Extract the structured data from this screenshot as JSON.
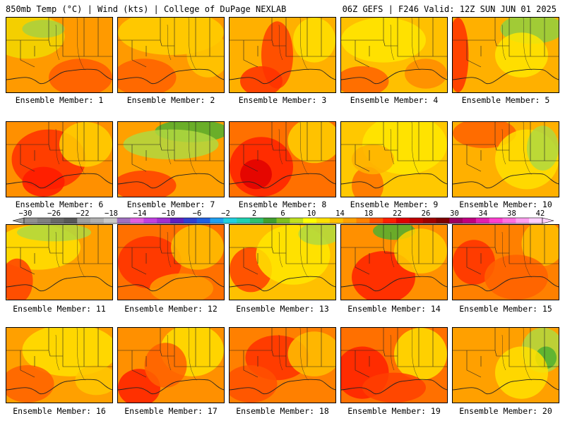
{
  "header": {
    "left": "850mb Temp (°C) | Wind (kts) | College of DuPage NEXLAB",
    "right": "06Z GEFS | F246 Valid: 12Z SUN JUN 01 2025"
  },
  "panel_label_prefix": "Ensemble Member: ",
  "members": [
    {
      "n": "1",
      "base": "#ff9a00",
      "blobs": [
        [
          "#f2d800",
          0.2,
          0.25,
          0.35,
          0.3
        ],
        [
          "#a8d040",
          0.35,
          0.15,
          0.2,
          0.12
        ],
        [
          "#ff5a00",
          0.7,
          0.8,
          0.3,
          0.25
        ]
      ]
    },
    {
      "n": "2",
      "base": "#ff9a00",
      "blobs": [
        [
          "#ffd000",
          0.5,
          0.2,
          0.5,
          0.3
        ],
        [
          "#ff6000",
          0.25,
          0.8,
          0.3,
          0.25
        ],
        [
          "#ffc800",
          0.85,
          0.5,
          0.2,
          0.3
        ]
      ]
    },
    {
      "n": "3",
      "base": "#ffb000",
      "blobs": [
        [
          "#ff4000",
          0.45,
          0.5,
          0.15,
          0.45
        ],
        [
          "#ff3000",
          0.3,
          0.85,
          0.2,
          0.2
        ],
        [
          "#ffe000",
          0.8,
          0.3,
          0.2,
          0.3
        ]
      ]
    },
    {
      "n": "4",
      "base": "#ffc000",
      "blobs": [
        [
          "#ffe600",
          0.4,
          0.3,
          0.4,
          0.3
        ],
        [
          "#ff6000",
          0.2,
          0.85,
          0.25,
          0.2
        ],
        [
          "#ff8a00",
          0.8,
          0.75,
          0.2,
          0.2
        ]
      ]
    },
    {
      "n": "5",
      "base": "#ffb000",
      "blobs": [
        [
          "#ff3000",
          0.05,
          0.5,
          0.1,
          0.5
        ],
        [
          "#90d040",
          0.75,
          0.15,
          0.3,
          0.2
        ],
        [
          "#ffe600",
          0.65,
          0.5,
          0.25,
          0.3
        ]
      ]
    },
    {
      "n": "6",
      "base": "#ff9000",
      "blobs": [
        [
          "#ff3000",
          0.4,
          0.5,
          0.35,
          0.4
        ],
        [
          "#ffd000",
          0.75,
          0.3,
          0.25,
          0.3
        ],
        [
          "#ff1a00",
          0.35,
          0.8,
          0.2,
          0.2
        ]
      ]
    },
    {
      "n": "7",
      "base": "#ffa000",
      "blobs": [
        [
          "#50b030",
          0.7,
          0.12,
          0.35,
          0.15
        ],
        [
          "#b0d840",
          0.5,
          0.3,
          0.45,
          0.2
        ],
        [
          "#ff4000",
          0.25,
          0.85,
          0.3,
          0.2
        ]
      ]
    },
    {
      "n": "8",
      "base": "#ff7000",
      "blobs": [
        [
          "#ff2000",
          0.3,
          0.6,
          0.3,
          0.4
        ],
        [
          "#ffd000",
          0.8,
          0.25,
          0.25,
          0.3
        ],
        [
          "#e00000",
          0.25,
          0.7,
          0.15,
          0.2
        ]
      ]
    },
    {
      "n": "9",
      "base": "#ffc800",
      "blobs": [
        [
          "#ffe800",
          0.6,
          0.3,
          0.4,
          0.4
        ],
        [
          "#ff7000",
          0.25,
          0.85,
          0.15,
          0.25
        ],
        [
          "#ffb000",
          0.3,
          0.5,
          0.2,
          0.2
        ]
      ]
    },
    {
      "n": "10",
      "base": "#ffb000",
      "blobs": [
        [
          "#ff6000",
          0.3,
          0.15,
          0.3,
          0.2
        ],
        [
          "#ffe000",
          0.7,
          0.5,
          0.3,
          0.4
        ],
        [
          "#b0d840",
          0.85,
          0.35,
          0.15,
          0.3
        ]
      ]
    },
    {
      "n": "11",
      "base": "#ffa000",
      "blobs": [
        [
          "#ffe000",
          0.3,
          0.3,
          0.4,
          0.3
        ],
        [
          "#b0d840",
          0.45,
          0.1,
          0.35,
          0.12
        ],
        [
          "#ff4000",
          0.1,
          0.75,
          0.15,
          0.3
        ]
      ]
    },
    {
      "n": "12",
      "base": "#ff7000",
      "blobs": [
        [
          "#ff3000",
          0.3,
          0.5,
          0.3,
          0.35
        ],
        [
          "#ffc000",
          0.75,
          0.3,
          0.25,
          0.3
        ],
        [
          "#ff9a00",
          0.6,
          0.85,
          0.3,
          0.2
        ]
      ]
    },
    {
      "n": "13",
      "base": "#ffc000",
      "blobs": [
        [
          "#ff4000",
          0.2,
          0.6,
          0.2,
          0.3
        ],
        [
          "#ffe600",
          0.6,
          0.4,
          0.35,
          0.4
        ],
        [
          "#b0d840",
          0.85,
          0.12,
          0.2,
          0.15
        ]
      ]
    },
    {
      "n": "14",
      "base": "#ff9000",
      "blobs": [
        [
          "#ff2000",
          0.4,
          0.7,
          0.3,
          0.35
        ],
        [
          "#50b030",
          0.5,
          0.08,
          0.2,
          0.12
        ],
        [
          "#ffd000",
          0.75,
          0.35,
          0.25,
          0.3
        ]
      ]
    },
    {
      "n": "15",
      "base": "#ff8000",
      "blobs": [
        [
          "#ff3000",
          0.2,
          0.5,
          0.2,
          0.3
        ],
        [
          "#ffc000",
          0.85,
          0.25,
          0.2,
          0.3
        ],
        [
          "#ff6000",
          0.6,
          0.7,
          0.3,
          0.3
        ]
      ]
    },
    {
      "n": "16",
      "base": "#ffa000",
      "blobs": [
        [
          "#ffe000",
          0.6,
          0.3,
          0.45,
          0.35
        ],
        [
          "#ff6000",
          0.2,
          0.75,
          0.25,
          0.25
        ],
        [
          "#ffc800",
          0.85,
          0.7,
          0.2,
          0.2
        ]
      ]
    },
    {
      "n": "17",
      "base": "#ff9000",
      "blobs": [
        [
          "#ff2000",
          0.2,
          0.8,
          0.2,
          0.25
        ],
        [
          "#ffe000",
          0.7,
          0.3,
          0.3,
          0.35
        ],
        [
          "#ff6000",
          0.45,
          0.5,
          0.2,
          0.3
        ]
      ]
    },
    {
      "n": "18",
      "base": "#ff8000",
      "blobs": [
        [
          "#ff3000",
          0.45,
          0.4,
          0.3,
          0.3
        ],
        [
          "#ffc000",
          0.8,
          0.35,
          0.25,
          0.3
        ],
        [
          "#ff5000",
          0.2,
          0.75,
          0.25,
          0.25
        ]
      ]
    },
    {
      "n": "19",
      "base": "#ff7000",
      "blobs": [
        [
          "#ff2000",
          0.2,
          0.6,
          0.25,
          0.35
        ],
        [
          "#ffe000",
          0.75,
          0.35,
          0.25,
          0.35
        ],
        [
          "#ff4000",
          0.5,
          0.8,
          0.3,
          0.2
        ]
      ]
    },
    {
      "n": "20",
      "base": "#ffa000",
      "blobs": [
        [
          "#b0d840",
          0.85,
          0.3,
          0.2,
          0.3
        ],
        [
          "#50b030",
          0.88,
          0.4,
          0.1,
          0.15
        ],
        [
          "#ffe000",
          0.65,
          0.6,
          0.25,
          0.35
        ]
      ]
    }
  ],
  "colorbar": {
    "colors": [
      "#909090",
      "#808080",
      "#686868",
      "#585858",
      "#a0a0a0",
      "#b0b0b0",
      "#c8c8c8",
      "#a070c0",
      "#e060e0",
      "#c040e0",
      "#a030d0",
      "#6020c0",
      "#3040d0",
      "#2060e0",
      "#20a0f0",
      "#20d0e0",
      "#20d0b0",
      "#30c070",
      "#40a030",
      "#80c020",
      "#c0e020",
      "#ffff00",
      "#ffe000",
      "#ffc000",
      "#ffa000",
      "#ff8000",
      "#ff5000",
      "#ff2000",
      "#e00000",
      "#c00000",
      "#a00000",
      "#800000",
      "#a00060",
      "#c00080",
      "#e020b0",
      "#ff40d0",
      "#ff70e0",
      "#ffa0f0",
      "#ffd0ff"
    ],
    "ticks": [
      "−30",
      "−26",
      "−22",
      "−18",
      "−14",
      "−10",
      "−6",
      "−2",
      "2",
      "6",
      "10",
      "14",
      "18",
      "22",
      "26",
      "30",
      "34",
      "38",
      "42"
    ]
  }
}
